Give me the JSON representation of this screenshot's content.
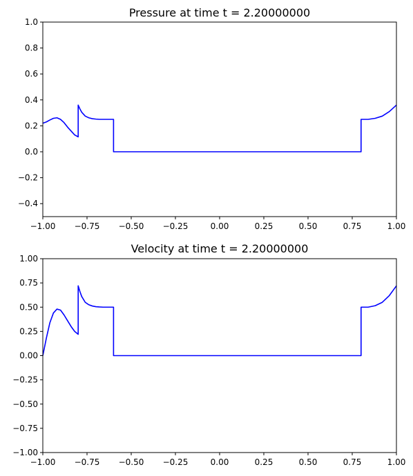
{
  "chart_data": [
    {
      "type": "line",
      "title": "Pressure at time t =     2.20000000",
      "xlabel": "",
      "ylabel": "",
      "xlim": [
        -1.0,
        1.0
      ],
      "ylim": [
        -0.5,
        1.0
      ],
      "xticks": [
        "−1.00",
        "−0.75",
        "−0.50",
        "−0.25",
        "0.00",
        "0.25",
        "0.50",
        "0.75",
        "1.00"
      ],
      "yticks": [
        "1.0",
        "0.8",
        "0.6",
        "0.4",
        "0.2",
        "0.0",
        "−0.2",
        "−0.4"
      ],
      "grid": false,
      "color": "#0000ff",
      "series": [
        {
          "x": [
            -1.0,
            -0.98,
            -0.96,
            -0.94,
            -0.92,
            -0.9,
            -0.88,
            -0.86,
            -0.84,
            -0.82,
            -0.8,
            -0.8,
            -0.79,
            -0.78,
            -0.76,
            -0.74,
            -0.72,
            -0.7,
            -0.68,
            -0.66,
            -0.64,
            -0.62,
            -0.6,
            -0.6,
            0.0,
            0.5,
            0.8,
            0.8,
            0.84,
            0.88,
            0.92,
            0.96,
            1.0
          ],
          "y": [
            0.22,
            0.23,
            0.245,
            0.258,
            0.262,
            0.25,
            0.225,
            0.19,
            0.16,
            0.13,
            0.115,
            0.36,
            0.33,
            0.305,
            0.275,
            0.262,
            0.255,
            0.252,
            0.25,
            0.25,
            0.25,
            0.25,
            0.25,
            0.0,
            0.0,
            0.0,
            0.0,
            0.25,
            0.25,
            0.258,
            0.275,
            0.31,
            0.36
          ]
        }
      ]
    },
    {
      "type": "line",
      "title": "Velocity at time t =     2.20000000",
      "xlabel": "",
      "ylabel": "",
      "xlim": [
        -1.0,
        1.0
      ],
      "ylim": [
        -1.0,
        1.0
      ],
      "xticks": [
        "−1.00",
        "−0.75",
        "−0.50",
        "−0.25",
        "0.00",
        "0.25",
        "0.50",
        "0.75",
        "1.00"
      ],
      "yticks": [
        "1.00",
        "0.75",
        "0.50",
        "0.25",
        "0.00",
        "−0.25",
        "−0.50",
        "−0.75",
        "−1.00"
      ],
      "grid": false,
      "color": "#0000ff",
      "series": [
        {
          "x": [
            -1.0,
            -0.98,
            -0.96,
            -0.94,
            -0.92,
            -0.9,
            -0.88,
            -0.86,
            -0.84,
            -0.82,
            -0.8,
            -0.8,
            -0.79,
            -0.78,
            -0.76,
            -0.74,
            -0.72,
            -0.7,
            -0.68,
            -0.66,
            -0.64,
            -0.62,
            -0.6,
            -0.6,
            0.0,
            0.5,
            0.8,
            0.8,
            0.84,
            0.88,
            0.92,
            0.96,
            1.0
          ],
          "y": [
            0.0,
            0.18,
            0.34,
            0.44,
            0.48,
            0.47,
            0.42,
            0.36,
            0.3,
            0.25,
            0.22,
            0.72,
            0.66,
            0.61,
            0.55,
            0.525,
            0.512,
            0.505,
            0.502,
            0.5,
            0.5,
            0.5,
            0.5,
            0.0,
            0.0,
            0.0,
            0.0,
            0.5,
            0.5,
            0.515,
            0.55,
            0.62,
            0.72
          ]
        }
      ]
    }
  ]
}
